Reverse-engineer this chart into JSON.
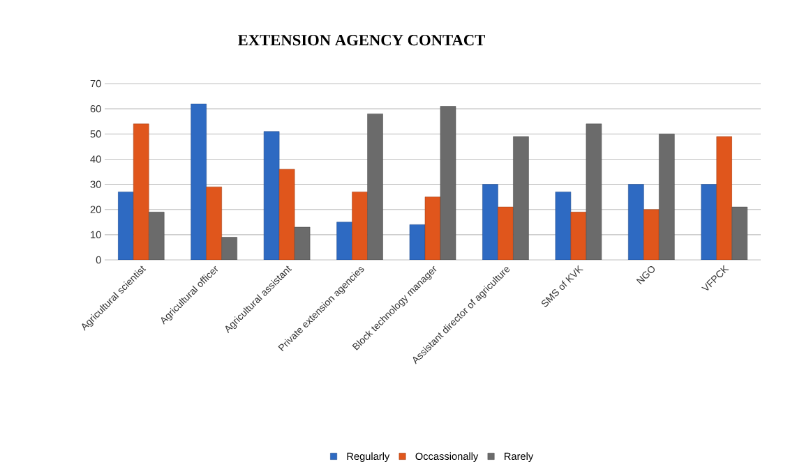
{
  "chart_data": {
    "type": "bar",
    "title": "EXTENSION AGENCY CONTACT",
    "categories": [
      "Agricultural scientist",
      "Agricultural officer",
      "Agricultural assistant",
      "Private extension agencies",
      "Block technology manager",
      "Assistant director of agriculture",
      "SMS of KVK",
      "NGO",
      "VFPCK"
    ],
    "series": [
      {
        "name": "Regularly",
        "color": "#2e6ac2",
        "values": [
          27,
          62,
          51,
          15,
          14,
          30,
          27,
          30,
          30
        ]
      },
      {
        "name": "Occassionally",
        "color": "#e0561c",
        "values": [
          54,
          29,
          36,
          27,
          25,
          21,
          19,
          20,
          49
        ]
      },
      {
        "name": "Rarely",
        "color": "#6b6b6b",
        "values": [
          19,
          9,
          13,
          58,
          61,
          49,
          54,
          50,
          21
        ]
      }
    ],
    "ylim": [
      0,
      70
    ],
    "yticks": [
      0,
      10,
      20,
      30,
      40,
      50,
      60,
      70
    ],
    "grid": "y",
    "legend": "bottom"
  }
}
